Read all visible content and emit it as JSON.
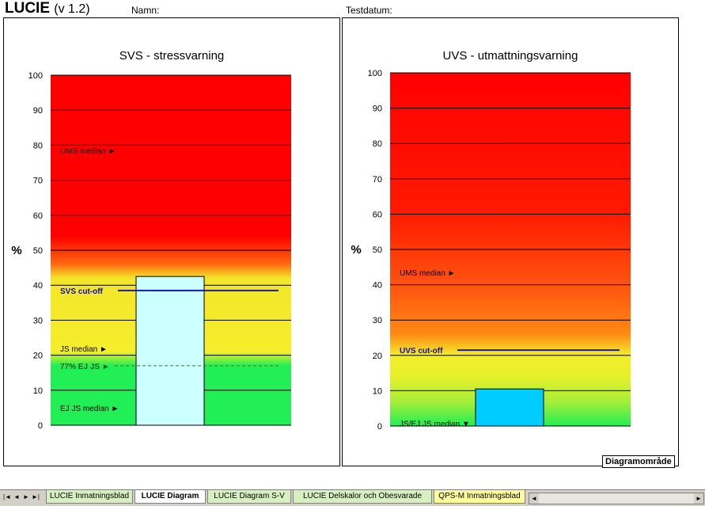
{
  "header": {
    "title": "LUCIE",
    "version": "(v 1.2)",
    "name_label": "Namn:",
    "test_date_label": "Testdatum:"
  },
  "chart_data": [
    {
      "type": "bar",
      "title": "SVS - stressvarning",
      "ylabel": "%",
      "ylim": [
        0,
        100
      ],
      "yticks": [
        "0",
        "10",
        "20",
        "30",
        "40",
        "50",
        "60",
        "70",
        "80",
        "90",
        "100"
      ],
      "grid": true,
      "categories": [
        ""
      ],
      "values": [
        42.5
      ],
      "bar_color": "#ccffff",
      "annotations": [
        {
          "label": "UMS median ►",
          "y": 78.5,
          "style": "black"
        },
        {
          "label": "SVS cut-off",
          "y": 38.5,
          "style": "blue",
          "line": "solid"
        },
        {
          "label": "JS median ►",
          "y": 22,
          "style": "black"
        },
        {
          "label": "77% EJ JS ►",
          "y": 17,
          "style": "green",
          "line": "dashed"
        },
        {
          "label": "EJ JS median ►",
          "y": 5,
          "style": "black"
        }
      ],
      "zones": {
        "red_above": 50,
        "yellow_from": 20,
        "green_below": 17
      }
    },
    {
      "type": "bar",
      "title": "UVS - utmattningsvarning",
      "ylabel": "%",
      "ylim": [
        0,
        100
      ],
      "yticks": [
        "0",
        "10",
        "20",
        "30",
        "40",
        "50",
        "60",
        "70",
        "80",
        "90",
        "100"
      ],
      "grid": true,
      "categories": [
        ""
      ],
      "values": [
        10.5
      ],
      "bar_color": "#00ccff",
      "annotations": [
        {
          "label": "UMS median ►",
          "y": 43.5,
          "style": "black"
        },
        {
          "label": "UVS cut-off",
          "y": 21.5,
          "style": "blue",
          "line": "solid"
        },
        {
          "label": "JS/EJ JS median ▼",
          "y": 0.8,
          "style": "black"
        }
      ]
    }
  ],
  "diagram_tooltip": "Diagramområde",
  "sheet_tabs": [
    {
      "label": "LUCIE Inmatningsblad",
      "active": false
    },
    {
      "label": "LUCIE Diagram",
      "active": true
    },
    {
      "label": "LUCIE Diagram S-V",
      "active": false
    },
    {
      "label": "LUCIE Delskalor och Obesvarade",
      "active": false
    },
    {
      "label": "QPS-M Inmatningsblad",
      "active": false
    }
  ],
  "colors": {
    "red": "#ff0000",
    "orange": "#ff6a00",
    "yellow": "#f5ee2a",
    "green": "#22ee55",
    "cutoff_blue": "#1a1aa8",
    "dashed_green": "#3a7a3a"
  }
}
